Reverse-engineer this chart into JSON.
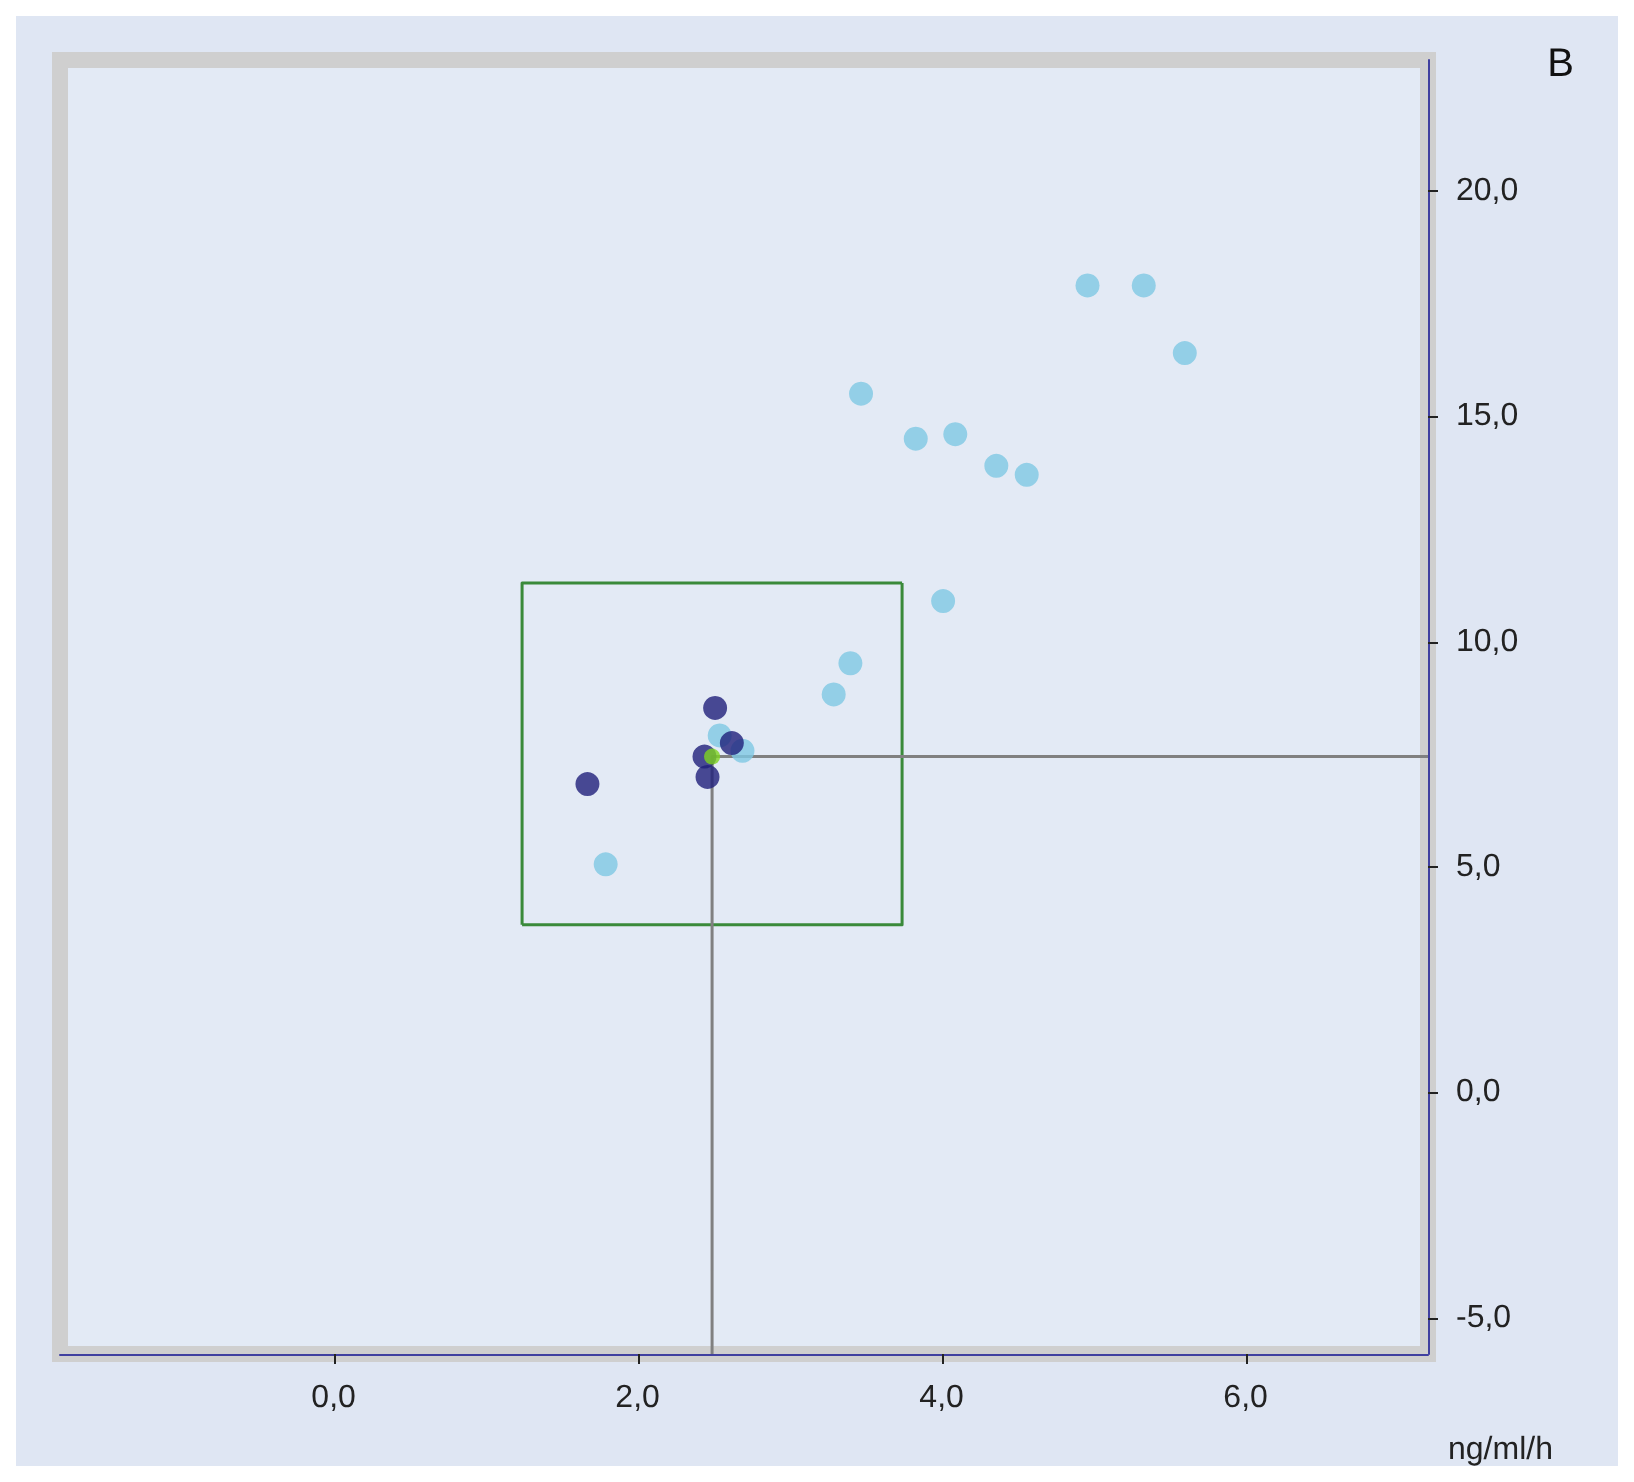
{
  "chart_data": {
    "type": "scatter",
    "xlabel": "ng/ml/h",
    "annotations": [
      "B"
    ],
    "xlim": [
      -1.8,
      7.2
    ],
    "ylim": [
      -5.8,
      22.9
    ],
    "xticks": [
      {
        "value": 0,
        "label": "0,0"
      },
      {
        "value": 2,
        "label": "2,0"
      },
      {
        "value": 4,
        "label": "4,0"
      },
      {
        "value": 6,
        "label": "6,0"
      }
    ],
    "yticks": [
      {
        "value": -5,
        "label": "-5,0"
      },
      {
        "value": 0,
        "label": "0,0"
      },
      {
        "value": 5,
        "label": "5,0"
      },
      {
        "value": 10,
        "label": "10,0"
      },
      {
        "value": 15,
        "label": "15,0"
      },
      {
        "value": 20,
        "label": "20,0"
      }
    ],
    "grid": false,
    "marker": "circle",
    "series": [
      {
        "type": "line",
        "color": "#3a8a3a",
        "marker": "none",
        "x": [
          1.24,
          1.24,
          3.74
        ],
        "values": [
          3.72,
          11.3,
          11.3
        ]
      },
      {
        "type": "line",
        "color": "#3a8a3a",
        "marker": "none",
        "x": [
          1.24,
          3.74,
          3.74
        ],
        "values": [
          3.72,
          3.72,
          11.3
        ]
      },
      {
        "type": "line",
        "color": "#808080",
        "marker": "none",
        "x": [
          2.49,
          2.49,
          7.2
        ],
        "values": [
          -5.8,
          7.45,
          7.45
        ]
      },
      {
        "color": "#7ec8e3",
        "x": [
          1.79,
          2.69,
          2.54,
          3.29,
          3.4,
          4.01,
          3.47,
          3.83,
          4.09,
          4.36,
          4.56,
          4.96,
          5.33,
          5.6
        ],
        "values": [
          5.06,
          7.58,
          7.92,
          8.83,
          9.52,
          10.9,
          15.5,
          14.5,
          14.6,
          13.9,
          13.7,
          17.9,
          17.9,
          16.4
        ]
      },
      {
        "color": "#1f1f7a",
        "x": [
          1.67,
          2.51,
          2.62,
          2.46,
          2.44
        ],
        "values": [
          6.84,
          8.53,
          7.75,
          7.0,
          7.45
        ]
      },
      {
        "color": "#7ed321",
        "marker": "circle",
        "x": [
          2.49
        ],
        "values": [
          7.45
        ]
      }
    ]
  }
}
